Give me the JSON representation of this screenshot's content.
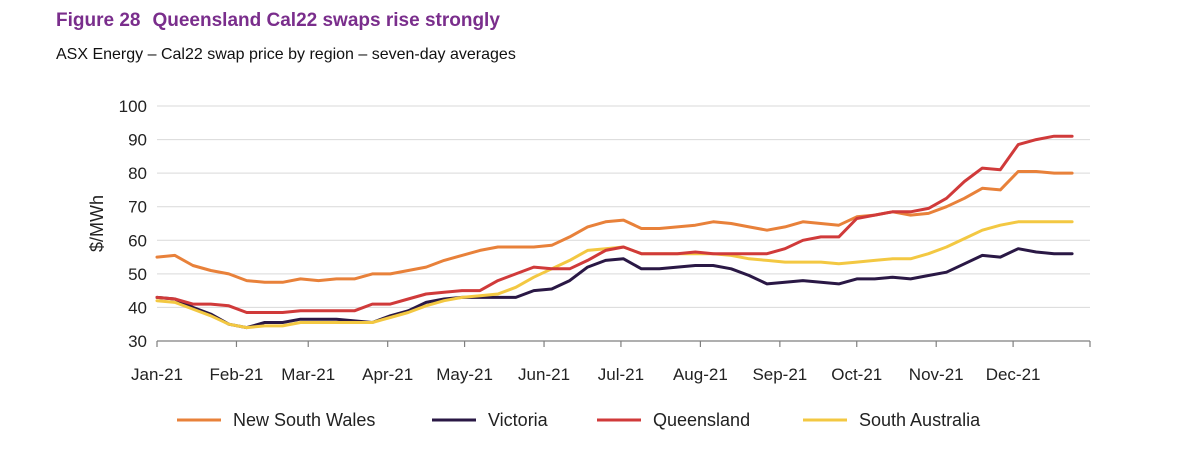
{
  "figure": {
    "number": "Figure 28",
    "title": "Queensland Cal22 swaps rise strongly",
    "subtitle": "ASX Energy – Cal22 swap price by region – seven-day averages"
  },
  "colors": {
    "title": "#7a2e8c",
    "grid": "#d9d9d9"
  },
  "chart_data": {
    "type": "line",
    "ylabel": "$/MWh",
    "xlabel": "",
    "ylim": [
      30,
      100
    ],
    "yticks": [
      30,
      40,
      50,
      60,
      70,
      80,
      90,
      100
    ],
    "xlim": [
      "2021-01-01",
      "2021-12-31"
    ],
    "xtick_labels": [
      "Jan-21",
      "Feb-21",
      "Mar-21",
      "Apr-21",
      "May-21",
      "Jun-21",
      "Jul-21",
      "Aug-21",
      "Sep-21",
      "Oct-21",
      "Nov-21",
      "Dec-21"
    ],
    "grid": "horizontal",
    "legend": "bottom",
    "x": [
      "2021-01-01",
      "2021-01-08",
      "2021-01-15",
      "2021-01-22",
      "2021-01-29",
      "2021-02-05",
      "2021-02-12",
      "2021-02-19",
      "2021-02-26",
      "2021-03-05",
      "2021-03-12",
      "2021-03-19",
      "2021-03-26",
      "2021-04-02",
      "2021-04-09",
      "2021-04-16",
      "2021-04-23",
      "2021-04-30",
      "2021-05-07",
      "2021-05-14",
      "2021-05-21",
      "2021-05-28",
      "2021-06-04",
      "2021-06-11",
      "2021-06-18",
      "2021-06-25",
      "2021-07-02",
      "2021-07-09",
      "2021-07-16",
      "2021-07-23",
      "2021-07-30",
      "2021-08-06",
      "2021-08-13",
      "2021-08-20",
      "2021-08-27",
      "2021-09-03",
      "2021-09-10",
      "2021-09-17",
      "2021-09-24",
      "2021-10-01",
      "2021-10-08",
      "2021-10-15",
      "2021-10-22",
      "2021-10-29",
      "2021-11-05",
      "2021-11-12",
      "2021-11-19",
      "2021-11-26",
      "2021-12-03",
      "2021-12-10",
      "2021-12-17",
      "2021-12-24"
    ],
    "series": [
      {
        "name": "New South Wales",
        "color": "#e8813a",
        "values": [
          55,
          55.5,
          52.5,
          51,
          50,
          48,
          47.5,
          47.5,
          48.5,
          48,
          48.5,
          48.5,
          50,
          50,
          51,
          52,
          54,
          55.5,
          57,
          58,
          58,
          58,
          58.5,
          61,
          64,
          65.5,
          66,
          63.5,
          63.5,
          64,
          64.5,
          65.5,
          65,
          64,
          63,
          64,
          65.5,
          65,
          64.5,
          67,
          67.5,
          68.5,
          67.5,
          68,
          70,
          72.5,
          75.5,
          75,
          80.5,
          80.5,
          80,
          80
        ]
      },
      {
        "name": "Victoria",
        "color": "#2a1845",
        "values": [
          43,
          42.5,
          40,
          38,
          35,
          34,
          35.5,
          35.5,
          36.5,
          36.5,
          36.5,
          36,
          35.5,
          37.5,
          39,
          41.5,
          42.5,
          43,
          43,
          43,
          43,
          45,
          45.5,
          48,
          52,
          54,
          54.5,
          51.5,
          51.5,
          52,
          52.5,
          52.5,
          51.5,
          49.5,
          47,
          47.5,
          48,
          47.5,
          47,
          48.5,
          48.5,
          49,
          48.5,
          49.5,
          50.5,
          53,
          55.5,
          55,
          57.5,
          56.5,
          56,
          56
        ]
      },
      {
        "name": "Queensland",
        "color": "#d03a3a",
        "values": [
          43,
          42.5,
          41,
          41,
          40.5,
          38.5,
          38.5,
          38.5,
          39,
          39,
          39,
          39,
          41,
          41,
          42.5,
          44,
          44.5,
          45,
          45,
          48,
          50,
          52,
          51.5,
          51.5,
          54,
          57,
          58,
          56,
          56,
          56,
          56.5,
          56,
          56,
          56,
          56,
          57.5,
          60,
          61,
          61,
          66.5,
          67.5,
          68.5,
          68.5,
          69.5,
          72.5,
          77.5,
          81.5,
          81,
          88.5,
          90,
          91,
          91
        ]
      },
      {
        "name": "South Australia",
        "color": "#f3c842",
        "values": [
          42,
          41.5,
          39.5,
          37.5,
          35,
          34,
          34.5,
          34.5,
          35.5,
          35.5,
          35.5,
          35.5,
          35.5,
          37,
          38.5,
          40.5,
          42,
          43,
          43.5,
          44,
          46,
          49,
          51.5,
          54,
          57,
          57.5,
          58,
          56,
          56,
          56,
          56,
          56,
          55.5,
          54.5,
          54,
          53.5,
          53.5,
          53.5,
          53,
          53.5,
          54,
          54.5,
          54.5,
          56,
          58,
          60.5,
          63,
          64.5,
          65.5,
          65.5,
          65.5,
          65.5
        ]
      }
    ]
  }
}
